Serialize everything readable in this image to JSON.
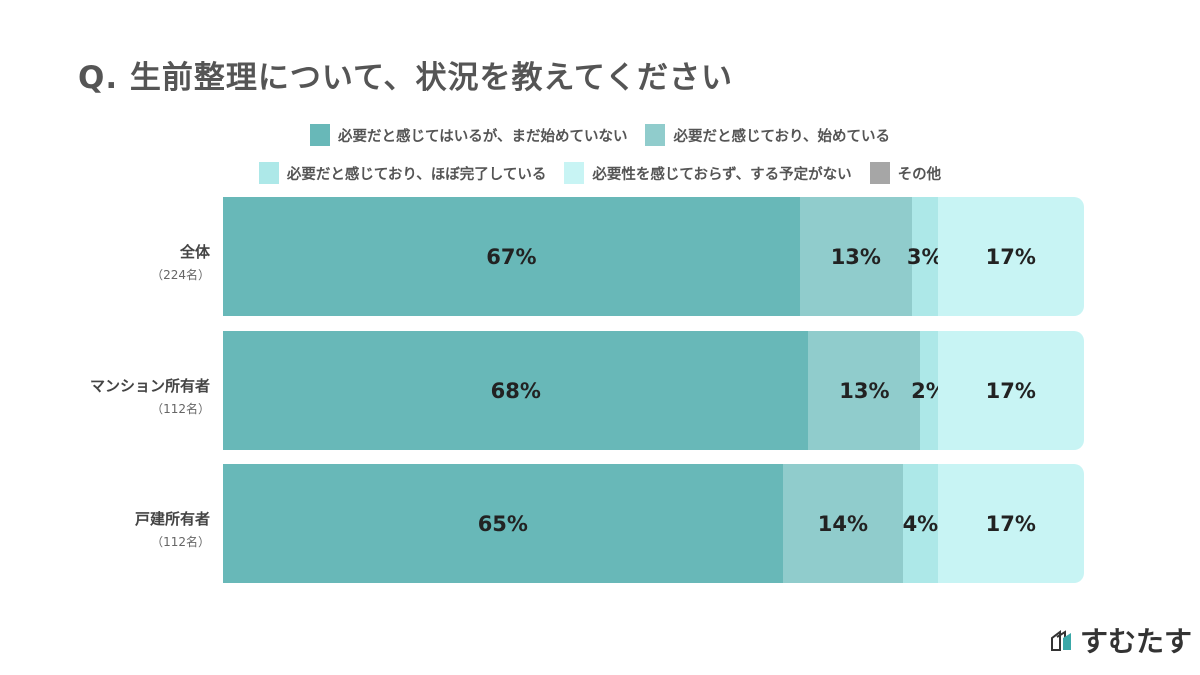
{
  "chart_data": {
    "type": "bar",
    "orientation": "horizontal-stacked",
    "title": "Q. 生前整理について、状況を教えてください",
    "xlim": [
      0,
      100
    ],
    "grid": false,
    "legend_placement": "top",
    "legend": [
      {
        "name": "必要だと感じてはいるが、まだ始めていない",
        "color": "#68b8b8"
      },
      {
        "name": "必要だと感じており、始めている",
        "color": "#90cccc"
      },
      {
        "name": "必要だと感じており、ほぼ完了している",
        "color": "#ade8e8"
      },
      {
        "name": "必要性を感じておらず、する予定がない",
        "color": "#c8f4f4"
      },
      {
        "name": "その他",
        "color": "#a6a6a6"
      }
    ],
    "categories": [
      {
        "name": "全体",
        "n": "（224名）"
      },
      {
        "name": "マンション所有者",
        "n": "（112名）"
      },
      {
        "name": "戸建所有者",
        "n": "（112名）"
      }
    ],
    "series": [
      {
        "name": "必要だと感じてはいるが、まだ始めていない",
        "values": [
          67,
          68,
          65
        ],
        "labels": [
          "67%",
          "68%",
          "65%"
        ]
      },
      {
        "name": "必要だと感じており、始めている",
        "values": [
          13,
          13,
          14
        ],
        "labels": [
          "13%",
          "13%",
          "14%"
        ]
      },
      {
        "name": "必要だと感じており、ほぼ完了している",
        "values": [
          3,
          2,
          4
        ],
        "labels": [
          "3%",
          "2%",
          "4%"
        ]
      },
      {
        "name": "必要性を感じておらず、する予定がない",
        "values": [
          17,
          17,
          17
        ],
        "labels": [
          "17%",
          "17%",
          "17%"
        ]
      }
    ]
  },
  "logo": {
    "text": "すむたす"
  }
}
